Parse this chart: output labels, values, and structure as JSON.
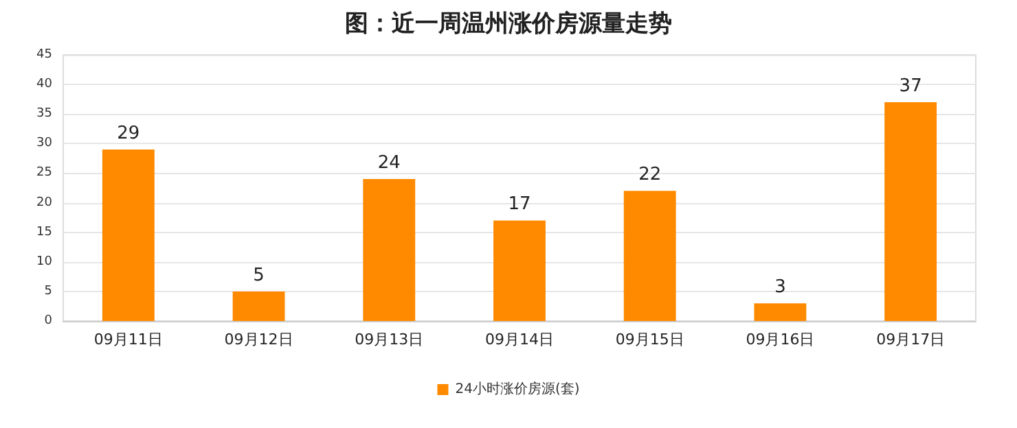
{
  "chart_data": {
    "type": "bar",
    "title": "图：近一周温州涨价房源量走势",
    "categories": [
      "09月11日",
      "09月12日",
      "09月13日",
      "09月14日",
      "09月15日",
      "09月16日",
      "09月17日"
    ],
    "series": [
      {
        "name": "24小时涨价房源(套)",
        "color": "#ff8a00",
        "values": [
          29,
          5,
          24,
          17,
          22,
          3,
          37
        ]
      }
    ],
    "ylim": [
      0,
      45
    ],
    "yticks": [
      0,
      5,
      10,
      15,
      20,
      25,
      30,
      35,
      40,
      45
    ],
    "grid": "y",
    "legend": "bottom",
    "data_labels": true
  }
}
